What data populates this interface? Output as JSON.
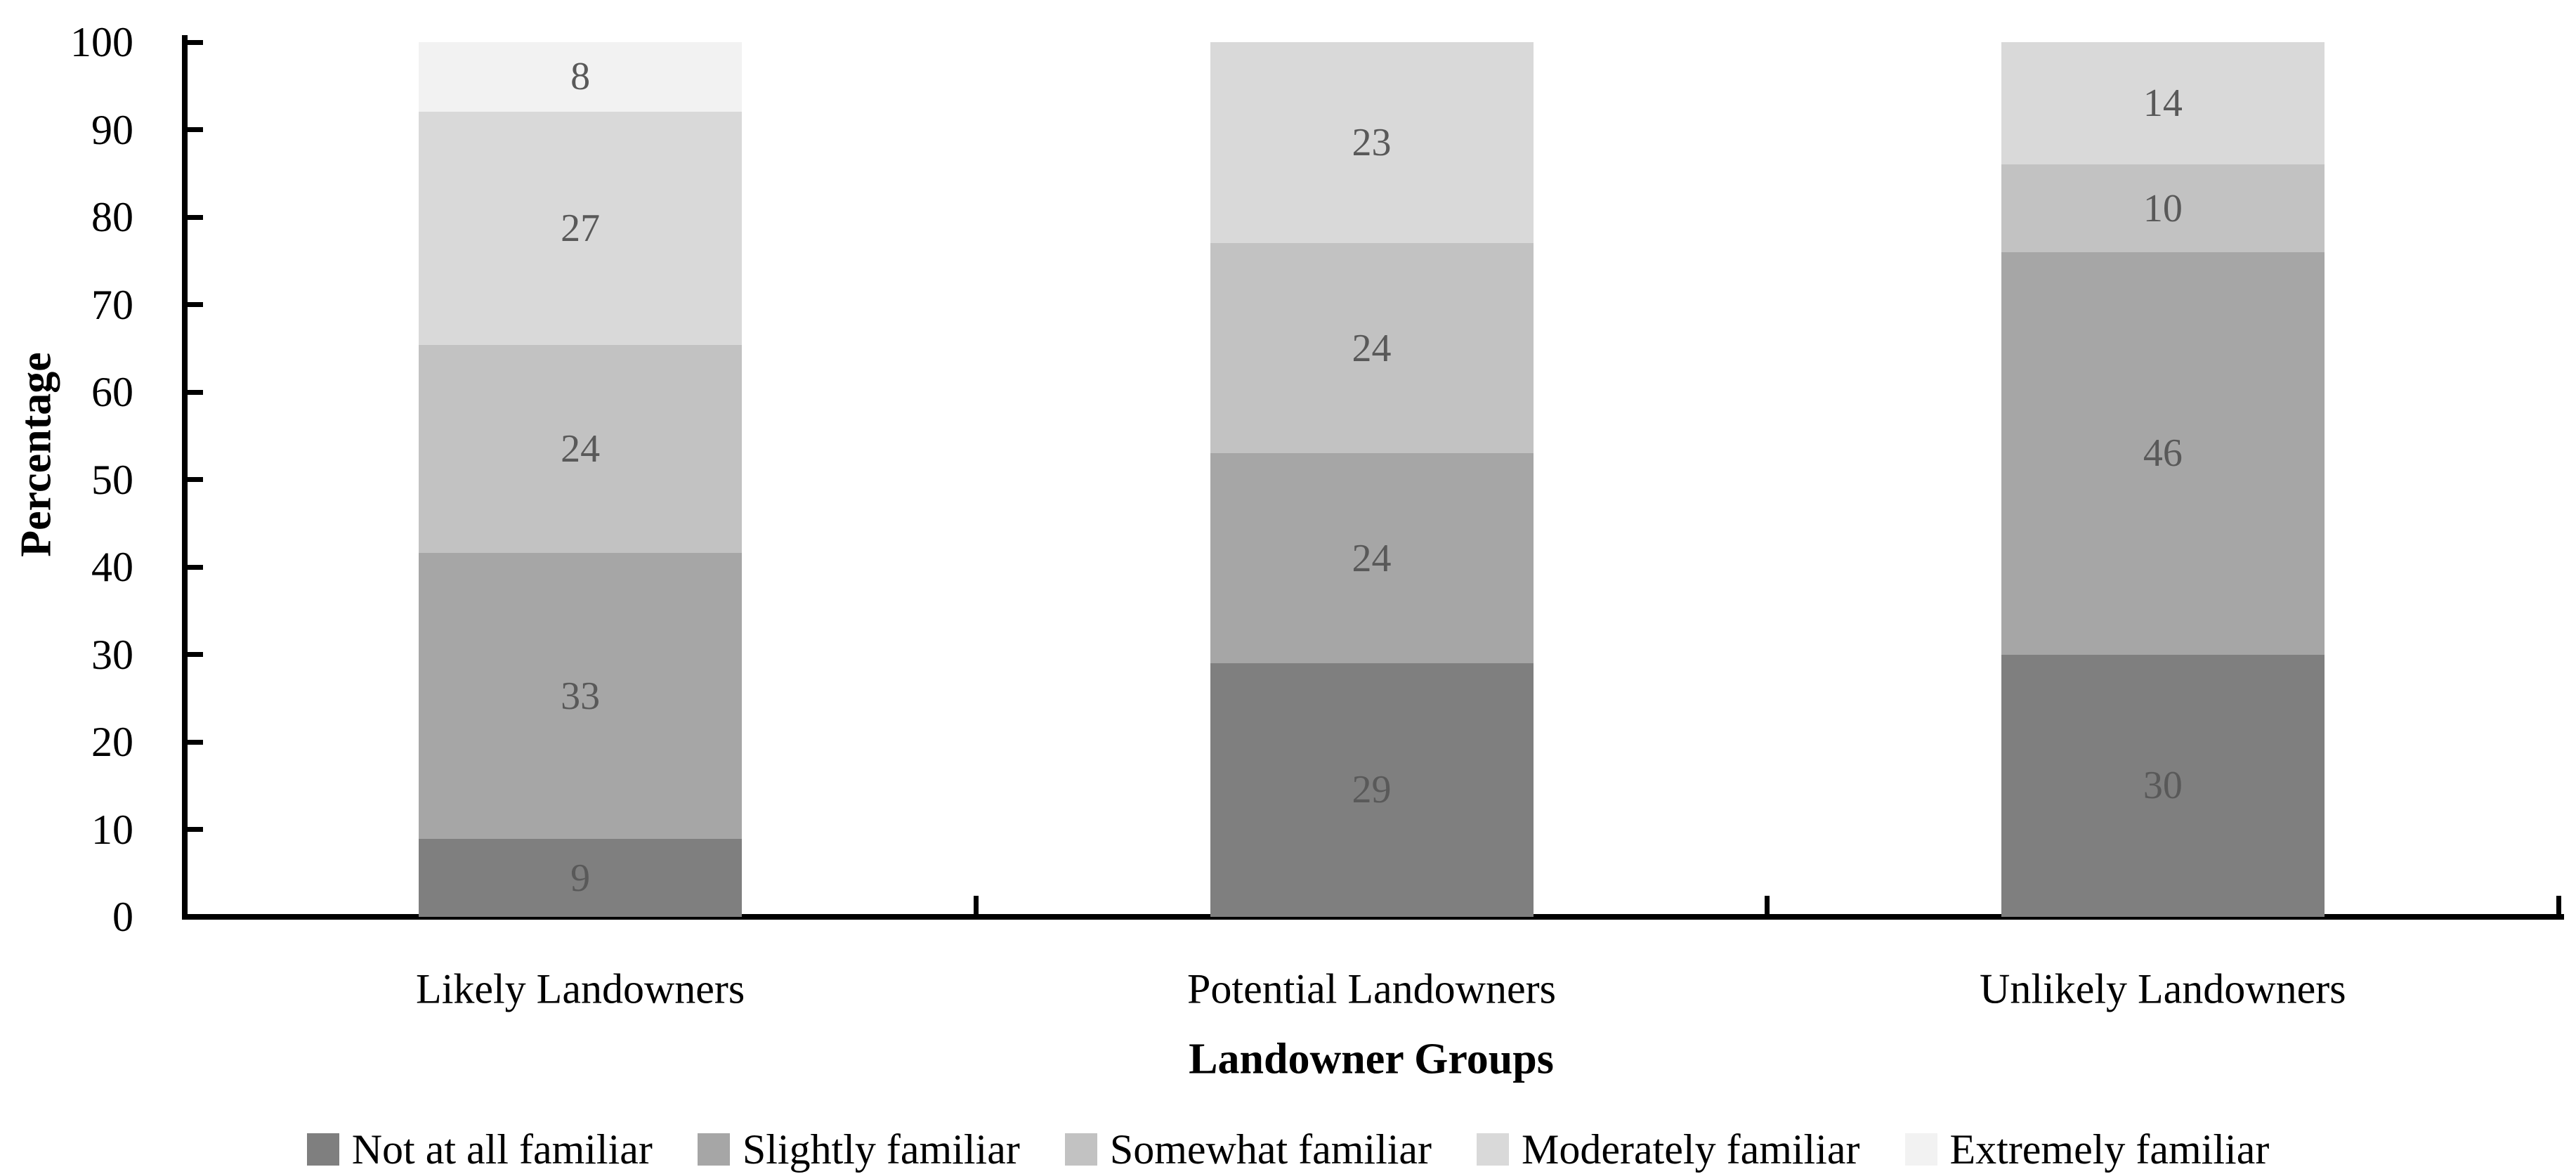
{
  "chart_data": {
    "type": "bar",
    "subtype": "stacked-percentage",
    "title": "",
    "xlabel": "Landowner Groups",
    "ylabel": "Percentage",
    "ylim": [
      0,
      100
    ],
    "yticks": [
      0,
      10,
      20,
      30,
      40,
      50,
      60,
      70,
      80,
      90,
      100
    ],
    "grid": false,
    "legend_position": "bottom",
    "categories": [
      "Likely Landowners",
      "Potential Landowners",
      "Unlikely Landowners"
    ],
    "series": [
      {
        "name": "Not at all familiar",
        "color": "#7f7f7f",
        "values": [
          9,
          29,
          30
        ]
      },
      {
        "name": "Slightly familiar",
        "color": "#a6a6a6",
        "values": [
          33,
          24,
          46
        ]
      },
      {
        "name": "Somewhat familiar",
        "color": "#c2c2c2",
        "values": [
          24,
          24,
          10
        ]
      },
      {
        "name": "Moderately familiar",
        "color": "#d9d9d9",
        "values": [
          27,
          23,
          14
        ]
      },
      {
        "name": "Extremely familiar",
        "color": "#f2f2f2",
        "values": [
          8,
          0,
          0
        ]
      }
    ],
    "value_label_color": "#595959",
    "axis_color": "#000000"
  }
}
